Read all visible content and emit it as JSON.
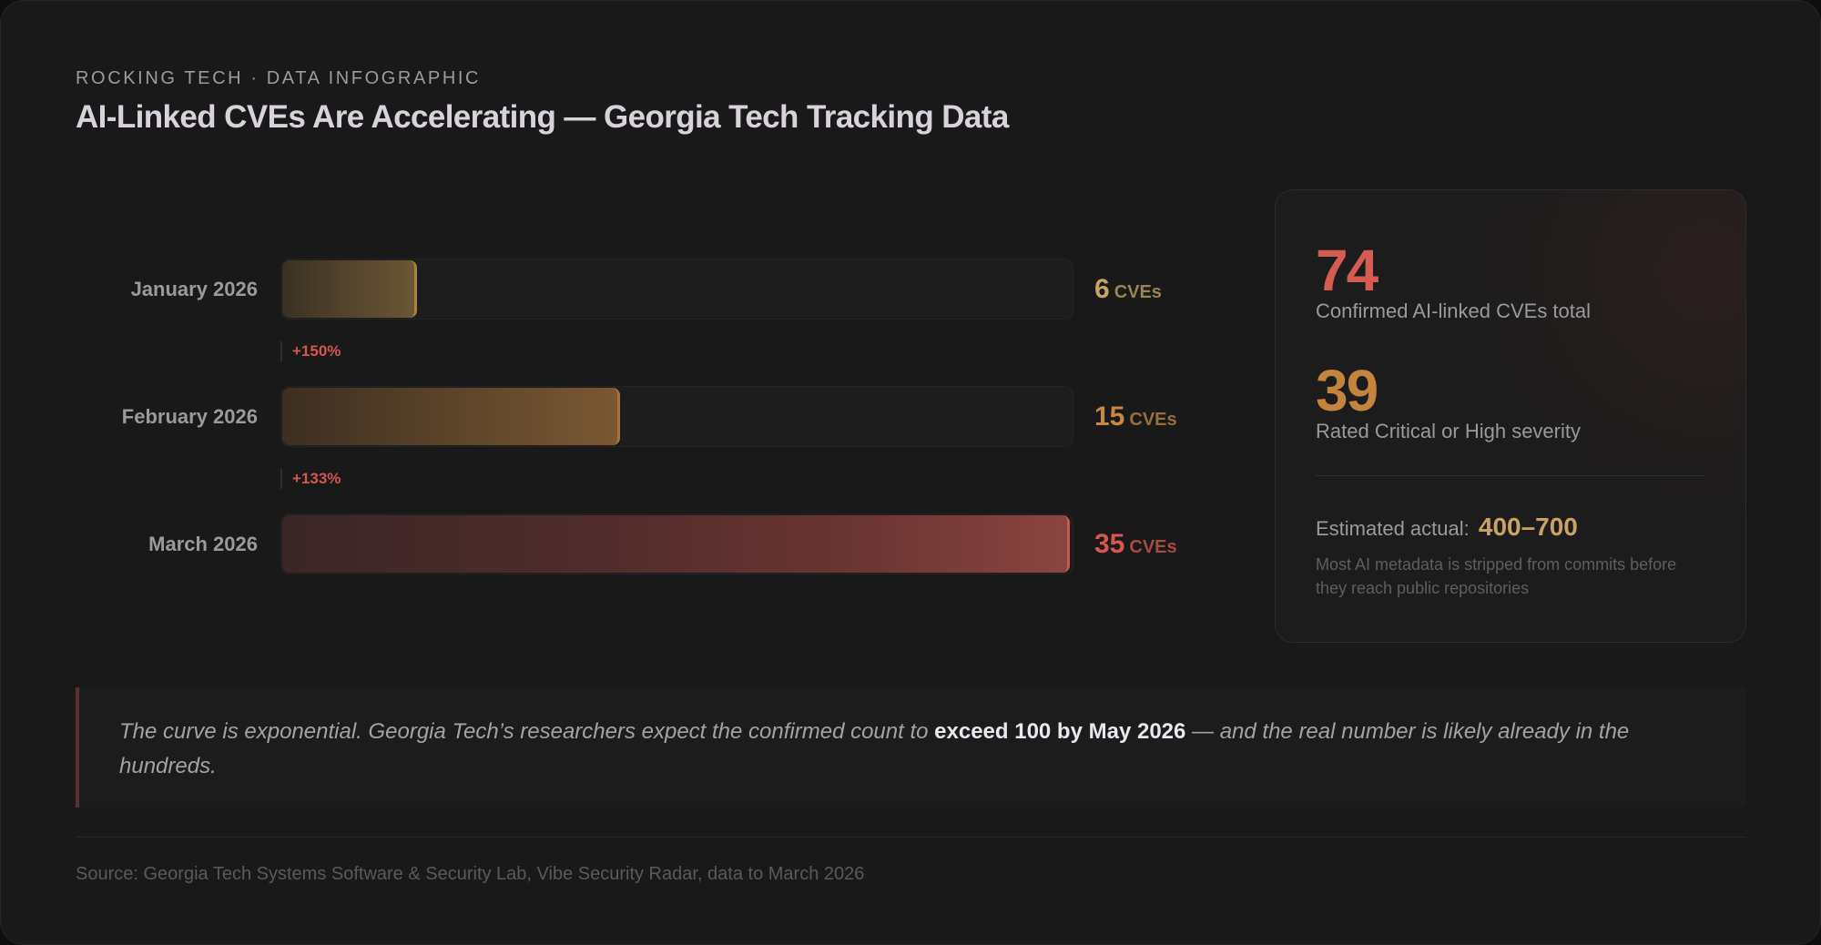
{
  "header": {
    "eyebrow": "ROCKING TECH · DATA INFOGRAPHIC",
    "title": "AI-Linked CVEs Are Accelerating — Georgia Tech Tracking Data"
  },
  "chart_data": {
    "type": "bar",
    "orientation": "horizontal",
    "title": "AI-Linked CVEs Are Accelerating — Georgia Tech Tracking Data",
    "categories": [
      "January 2026",
      "February 2026",
      "March 2026"
    ],
    "values": [
      6,
      15,
      35
    ],
    "unit": "CVEs",
    "xlim": [
      0,
      35
    ],
    "grid": false,
    "legend": "none",
    "annotations": [
      {
        "between": [
          "January 2026",
          "February 2026"
        ],
        "text": "+150%"
      },
      {
        "between": [
          "February 2026",
          "March 2026"
        ],
        "text": "+133%"
      }
    ],
    "colors": [
      "#c9a366",
      "#c9873f",
      "#d9574f"
    ]
  },
  "rows": [
    {
      "label": "January 2026",
      "value": "6",
      "unit": "CVEs",
      "pct": 17.1,
      "num_color": "#c9a366",
      "unit_color": "#9c8354"
    },
    {
      "label": "February 2026",
      "value": "15",
      "unit": "CVEs",
      "pct": 42.9,
      "num_color": "#c9873f",
      "unit_color": "#9a6e3e"
    },
    {
      "label": "March 2026",
      "value": "35",
      "unit": "CVEs",
      "pct": 100,
      "num_color": "#d9574f",
      "unit_color": "#a74a45"
    }
  ],
  "deltas": [
    "+150%",
    "+133%"
  ],
  "stats": {
    "total": {
      "value": "74",
      "label": "Confirmed AI-linked CVEs total",
      "color": "#d65c52"
    },
    "severe": {
      "value": "39",
      "label": "Rated Critical or High severity",
      "color": "#c4843e"
    },
    "estimate": {
      "label": "Estimated actual:",
      "range": "400–700",
      "note": "Most AI metadata is stripped from commits before they reach public repositories"
    }
  },
  "quote": {
    "before": "The curve is exponential. Georgia Tech’s researchers expect the confirmed count to ",
    "bold": "exceed 100 by May 2026",
    "after": " — and the real number is likely already in the hundreds."
  },
  "footer": {
    "source": "Source: Georgia Tech Systems Software & Security Lab, Vibe Security Radar, data to March 2026"
  }
}
